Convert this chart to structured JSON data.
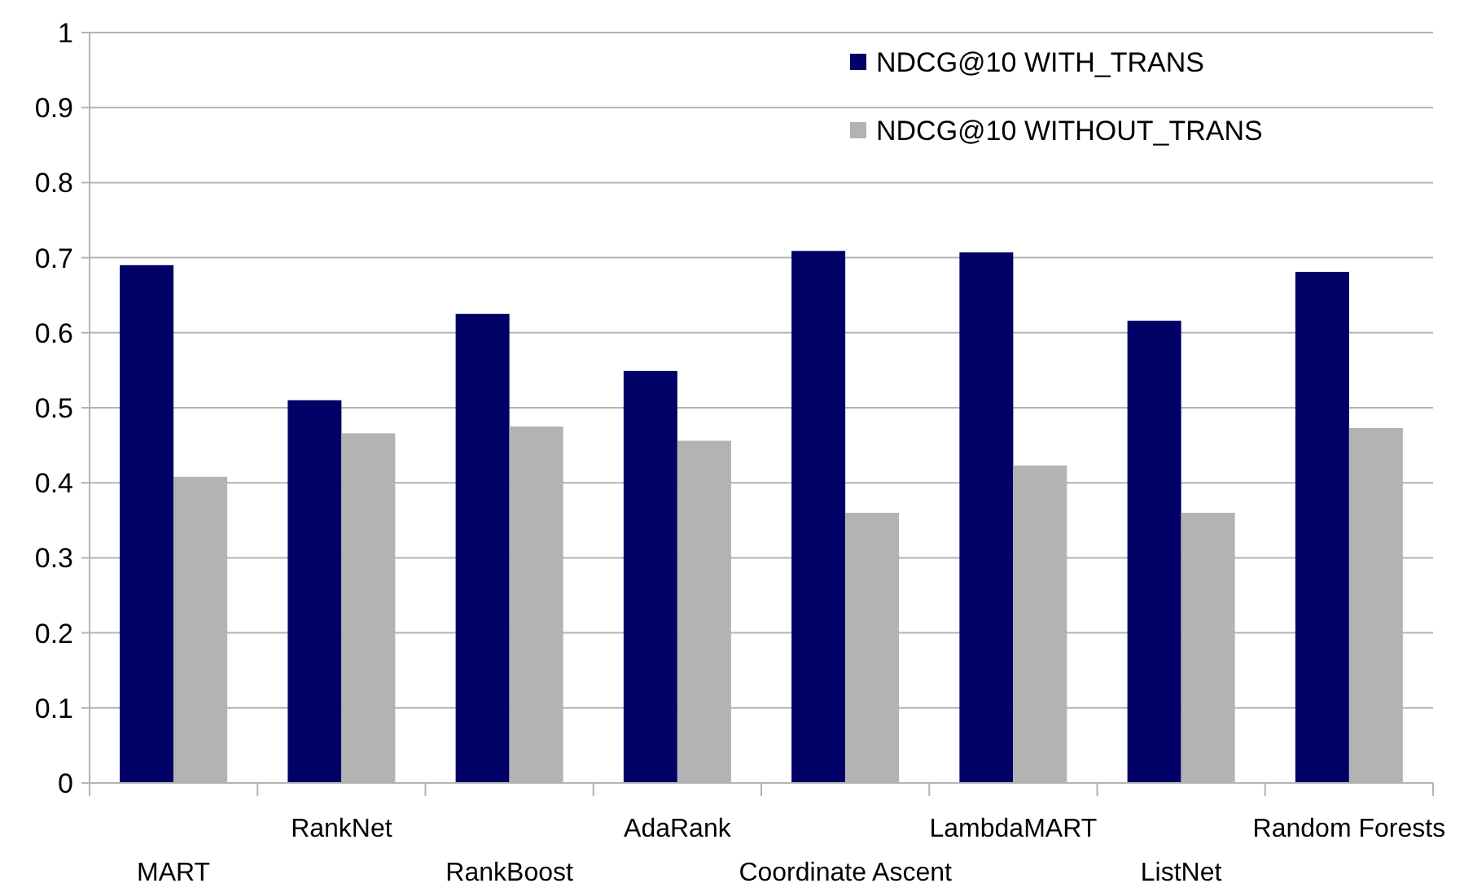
{
  "chart_data": {
    "type": "bar",
    "categories": [
      "MART",
      "RankNet",
      "RankBoost",
      "AdaRank",
      "Coordinate Ascent",
      "LambdaMART",
      "ListNet",
      "Random Forests"
    ],
    "series": [
      {
        "name": "NDCG@10 WITH_TRANS",
        "color": "#000066",
        "values": [
          0.69,
          0.51,
          0.625,
          0.549,
          0.709,
          0.707,
          0.616,
          0.681
        ]
      },
      {
        "name": "NDCG@10 WITHOUT_TRANS",
        "color": "#b3b3b3",
        "values": [
          0.408,
          0.466,
          0.475,
          0.456,
          0.36,
          0.423,
          0.36,
          0.473
        ]
      }
    ],
    "ylim": [
      0,
      1
    ],
    "yticks": [
      0,
      0.1,
      0.2,
      0.3,
      0.4,
      0.5,
      0.6,
      0.7,
      0.8,
      0.9,
      1
    ],
    "grid": "y",
    "legend": "top right"
  }
}
